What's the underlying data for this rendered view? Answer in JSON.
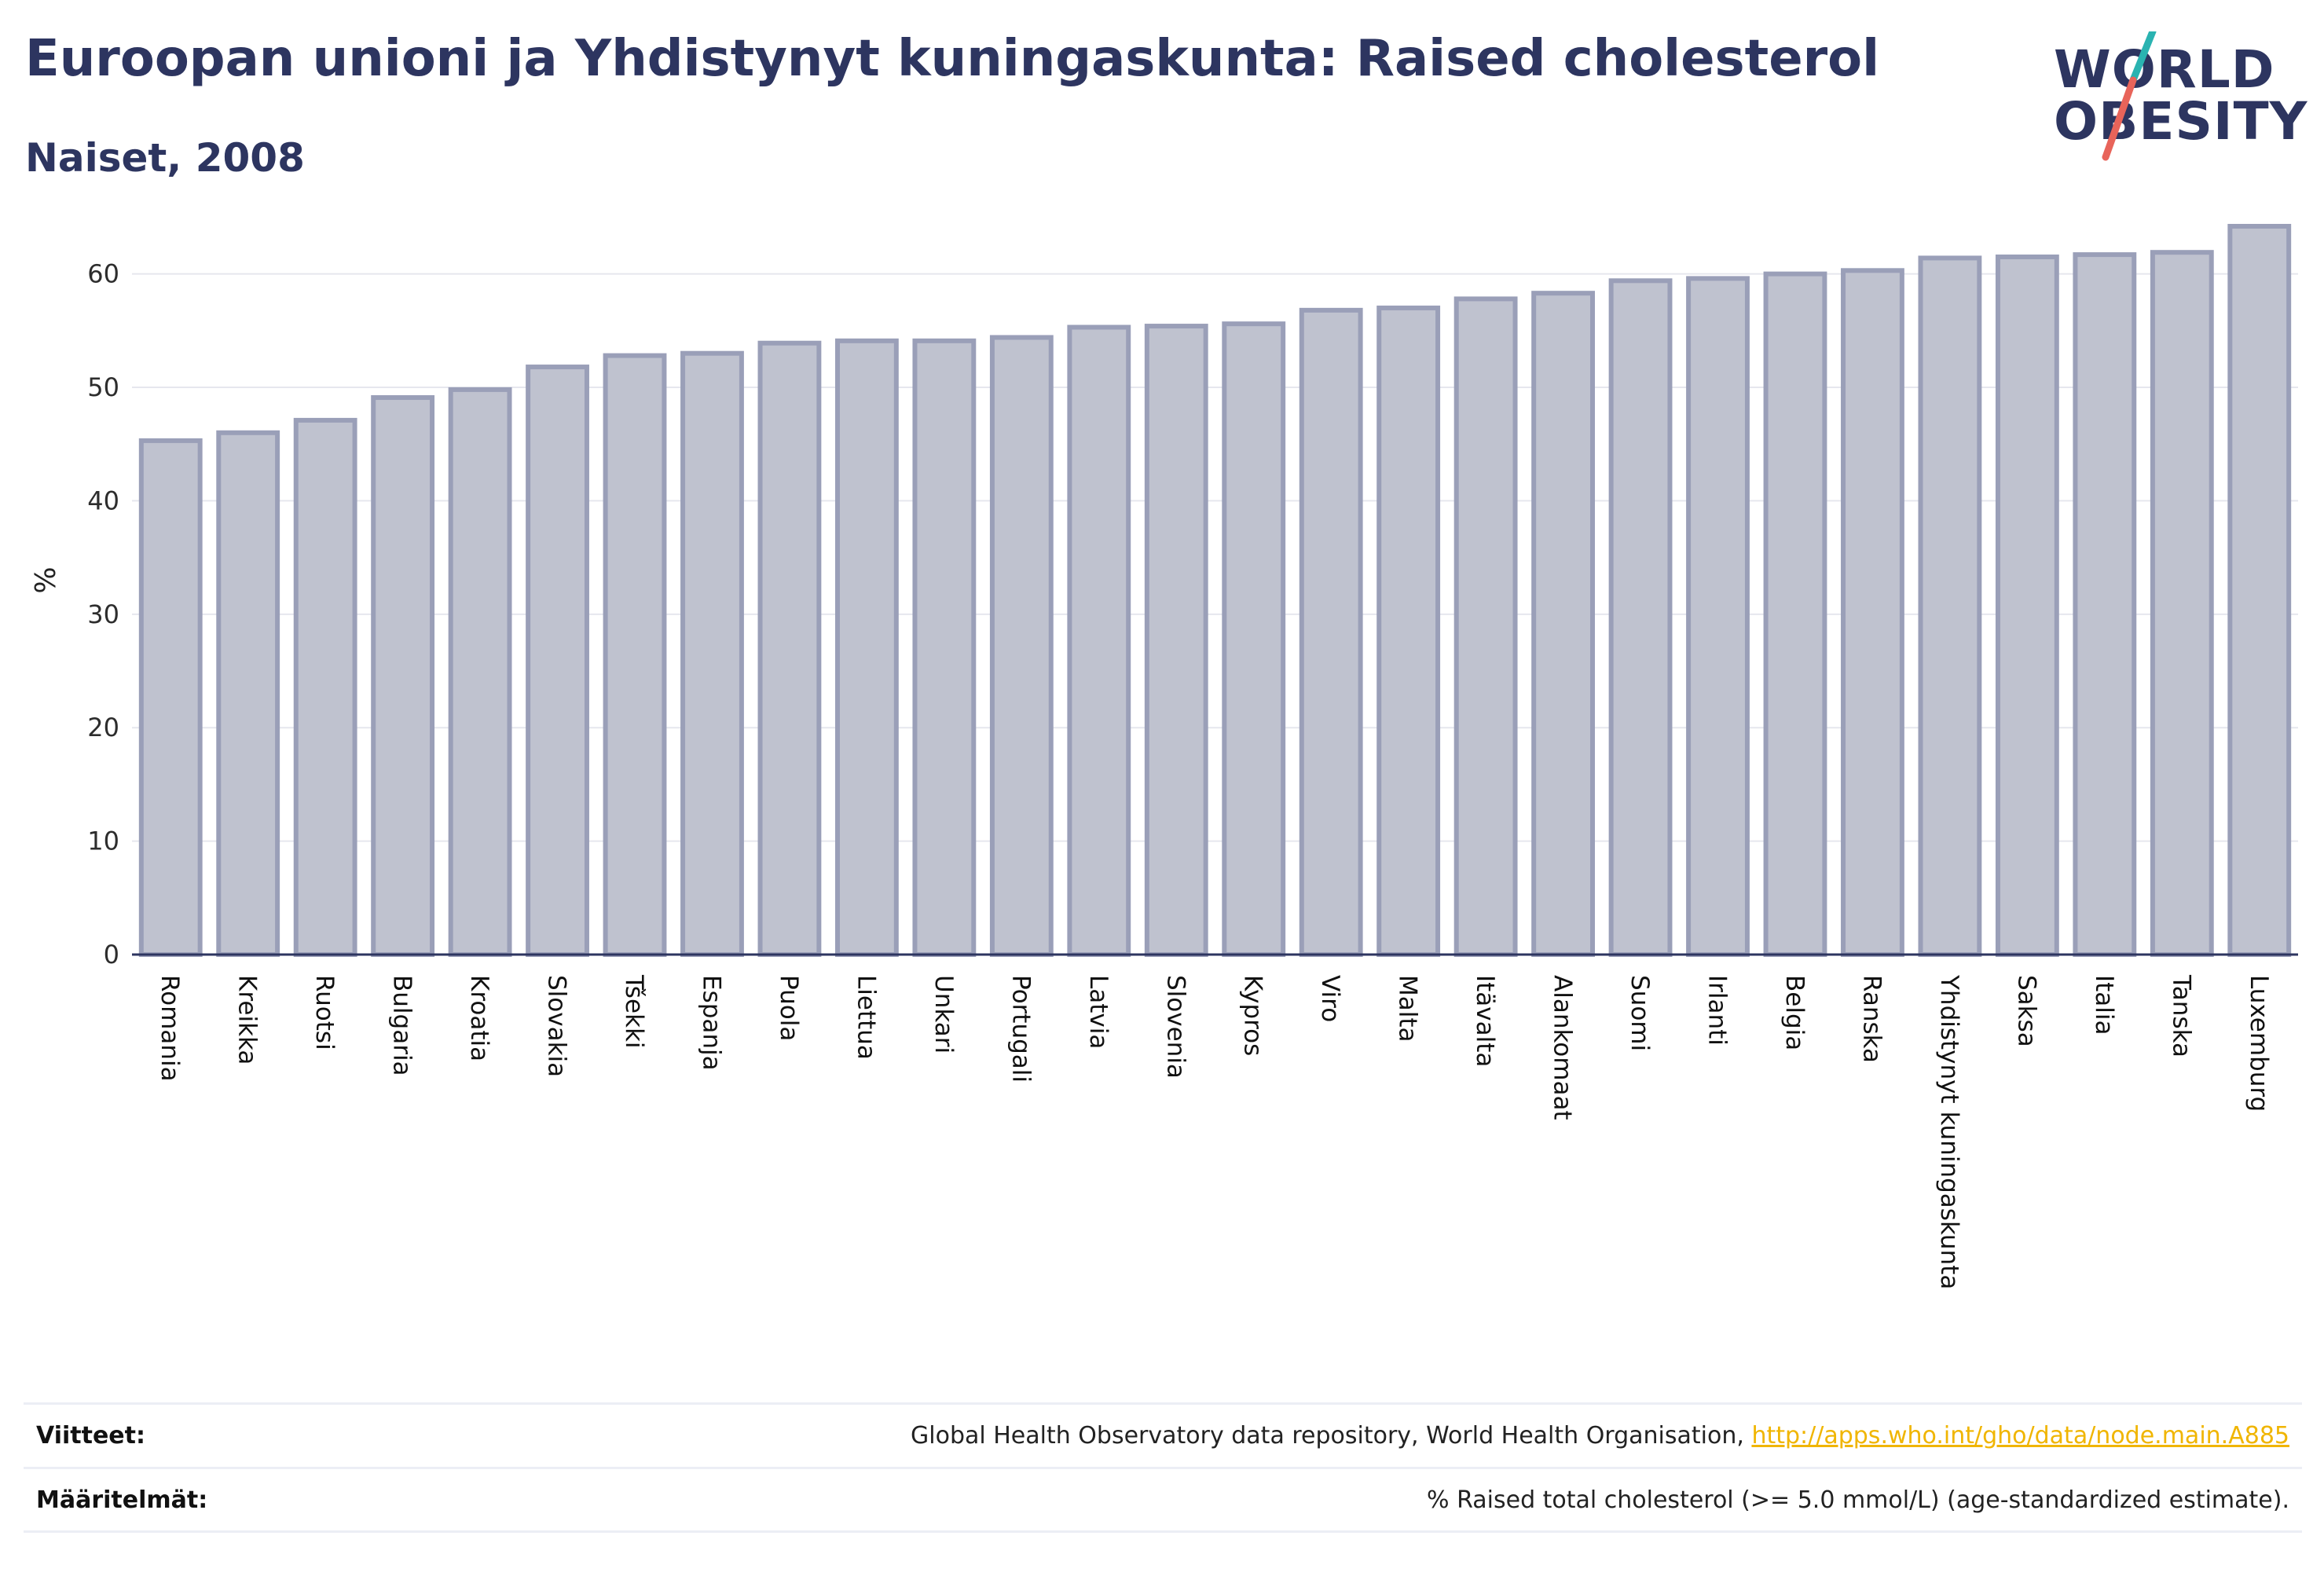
{
  "header": {
    "title": "Euroopan unioni ja Yhdistynyt kuningaskunta: Raised cholesterol",
    "subtitle": "Naiset, 2008"
  },
  "logo": {
    "line1": "WORLD",
    "line2": "OBESITY",
    "colors": {
      "text": "#2d3560",
      "slash_top": "#2ab3b1",
      "slash_bottom": "#e8645a"
    }
  },
  "footer": {
    "references_label": "Viitteet:",
    "references_text": "Global Health Observatory data repository, World Health Organisation, ",
    "references_link": "http://apps.who.int/gho/data/node.main.A885",
    "definitions_label": "Määritelmät:",
    "definitions_text": "% Raised total cholesterol (>= 5.0 mmol/L) (age-standardized estimate)."
  },
  "chart_data": {
    "type": "bar",
    "title": "Euroopan unioni ja Yhdistynyt kuningaskunta: Raised cholesterol",
    "subtitle": "Naiset, 2008",
    "xlabel": "",
    "ylabel": "%",
    "ylim": [
      0,
      66
    ],
    "yticks": [
      0,
      10,
      20,
      30,
      40,
      50,
      60
    ],
    "grid": true,
    "legend": "none",
    "bar_fill": "#bfc2cf",
    "bar_stroke": "#9a9fb8",
    "categories": [
      "Romania",
      "Kreikka",
      "Ruotsi",
      "Bulgaria",
      "Kroatia",
      "Slovakia",
      "Tšekki",
      "Espanja",
      "Puola",
      "Liettua",
      "Unkari",
      "Portugali",
      "Latvia",
      "Slovenia",
      "Kypros",
      "Viro",
      "Malta",
      "Itävalta",
      "Alankomaat",
      "Suomi",
      "Irlanti",
      "Belgia",
      "Ranska",
      "Yhdistynyt kuningaskunta",
      "Saksa",
      "Italia",
      "Tanska",
      "Luxemburg"
    ],
    "values": [
      45.3,
      46.0,
      47.1,
      49.1,
      49.8,
      51.8,
      52.8,
      53.0,
      53.9,
      54.1,
      54.1,
      54.4,
      55.3,
      55.4,
      55.6,
      56.8,
      57.0,
      57.8,
      58.3,
      59.4,
      59.6,
      60.0,
      60.3,
      61.4,
      61.5,
      61.7,
      61.9,
      64.2
    ]
  }
}
